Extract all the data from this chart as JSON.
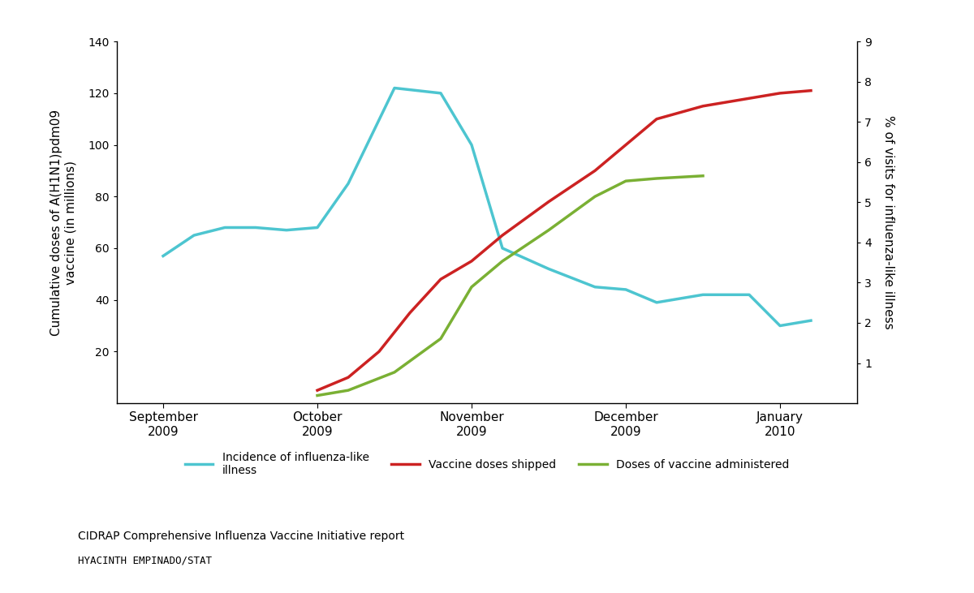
{
  "title": "",
  "left_ylabel": "Cumulative doses of A(H1N1)pdm09\nvaccine (in millions)",
  "right_ylabel": "% of visits for influenza-like illness",
  "xlabel_months": [
    "September\n2009",
    "October\n2009",
    "November\n2009",
    "December\n2009",
    "January\n2010"
  ],
  "x_positions": [
    0,
    1,
    2,
    3,
    4
  ],
  "left_ylim": [
    0,
    140
  ],
  "right_ylim": [
    0,
    9.0
  ],
  "left_yticks": [
    20,
    40,
    60,
    80,
    100,
    120,
    140
  ],
  "right_yticks": [
    1.0,
    2.0,
    3.0,
    4.0,
    5.0,
    6.0,
    7.0,
    8.0,
    9.0
  ],
  "cyan_x": [
    0.0,
    0.2,
    0.4,
    0.6,
    0.8,
    1.0,
    1.2,
    1.5,
    1.8,
    2.0,
    2.2,
    2.5,
    2.8,
    3.0,
    3.2,
    3.5,
    3.8,
    4.0,
    4.2
  ],
  "cyan_y": [
    57,
    65,
    68,
    68,
    67,
    68,
    85,
    122,
    120,
    100,
    60,
    52,
    45,
    44,
    39,
    42,
    42,
    30,
    32
  ],
  "red_x": [
    1.0,
    1.2,
    1.4,
    1.6,
    1.8,
    2.0,
    2.2,
    2.5,
    2.8,
    3.0,
    3.2,
    3.5,
    3.8,
    4.0,
    4.2
  ],
  "red_y": [
    5,
    10,
    20,
    35,
    48,
    55,
    65,
    78,
    90,
    100,
    110,
    115,
    118,
    120,
    121
  ],
  "green_x": [
    1.0,
    1.2,
    1.5,
    1.8,
    2.0,
    2.2,
    2.5,
    2.8,
    3.0,
    3.2,
    3.5
  ],
  "green_y": [
    3,
    5,
    12,
    25,
    45,
    55,
    67,
    80,
    86,
    87,
    88
  ],
  "cyan_color": "#4DC5D0",
  "red_color": "#CC2222",
  "green_color": "#7AB034",
  "line_width": 2.5,
  "bg_color": "#FFFFFF",
  "legend_labels": [
    "Incidence of influenza-like\nillness",
    "Vaccine doses shipped",
    "Doses of vaccine administered"
  ],
  "footer_line1": "CIDRAP Comprehensive Influenza Vaccine Initiative report",
  "footer_line2": "HYACINTH EMPINADO/STAT"
}
